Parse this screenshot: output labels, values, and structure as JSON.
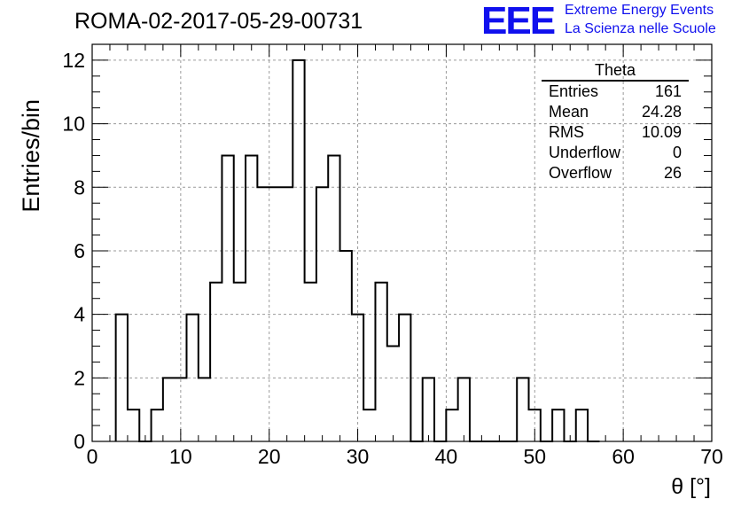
{
  "header": {
    "run_id": "ROMA-02-2017-05-29-00731",
    "logo_text": "EEE",
    "logo_line1": "Extreme Energy Events",
    "logo_line2": "La Scienza nelle Scuole",
    "logo_color": "#1010ee"
  },
  "stats_box": {
    "title": "Theta",
    "rows": [
      {
        "label": "Entries",
        "value": "161"
      },
      {
        "label": "Mean",
        "value": "24.28"
      },
      {
        "label": "RMS",
        "value": "10.09"
      },
      {
        "label": "Underflow",
        "value": "0"
      },
      {
        "label": "Overflow",
        "value": "26"
      }
    ]
  },
  "chart_data": {
    "type": "histogram",
    "title": "",
    "xlabel": "θ [°]",
    "ylabel": "Entries/bin",
    "xlim": [
      0,
      70
    ],
    "ylim": [
      0,
      12.5
    ],
    "x_ticks": [
      0,
      10,
      20,
      30,
      40,
      50,
      60,
      70
    ],
    "y_ticks": [
      0,
      2,
      4,
      6,
      8,
      10,
      12
    ],
    "grid": true,
    "bin_width": 1.333,
    "bin_edges_start": 2.667,
    "values": [
      4,
      1,
      0,
      1,
      2,
      2,
      4,
      2,
      5,
      9,
      5,
      9,
      8,
      8,
      8,
      12,
      5,
      8,
      9,
      6,
      4,
      1,
      5,
      3,
      4,
      0,
      2,
      0,
      1,
      2,
      0,
      0,
      0,
      0,
      2,
      1,
      0,
      1,
      0,
      1,
      0
    ],
    "line_color": "#000000"
  }
}
